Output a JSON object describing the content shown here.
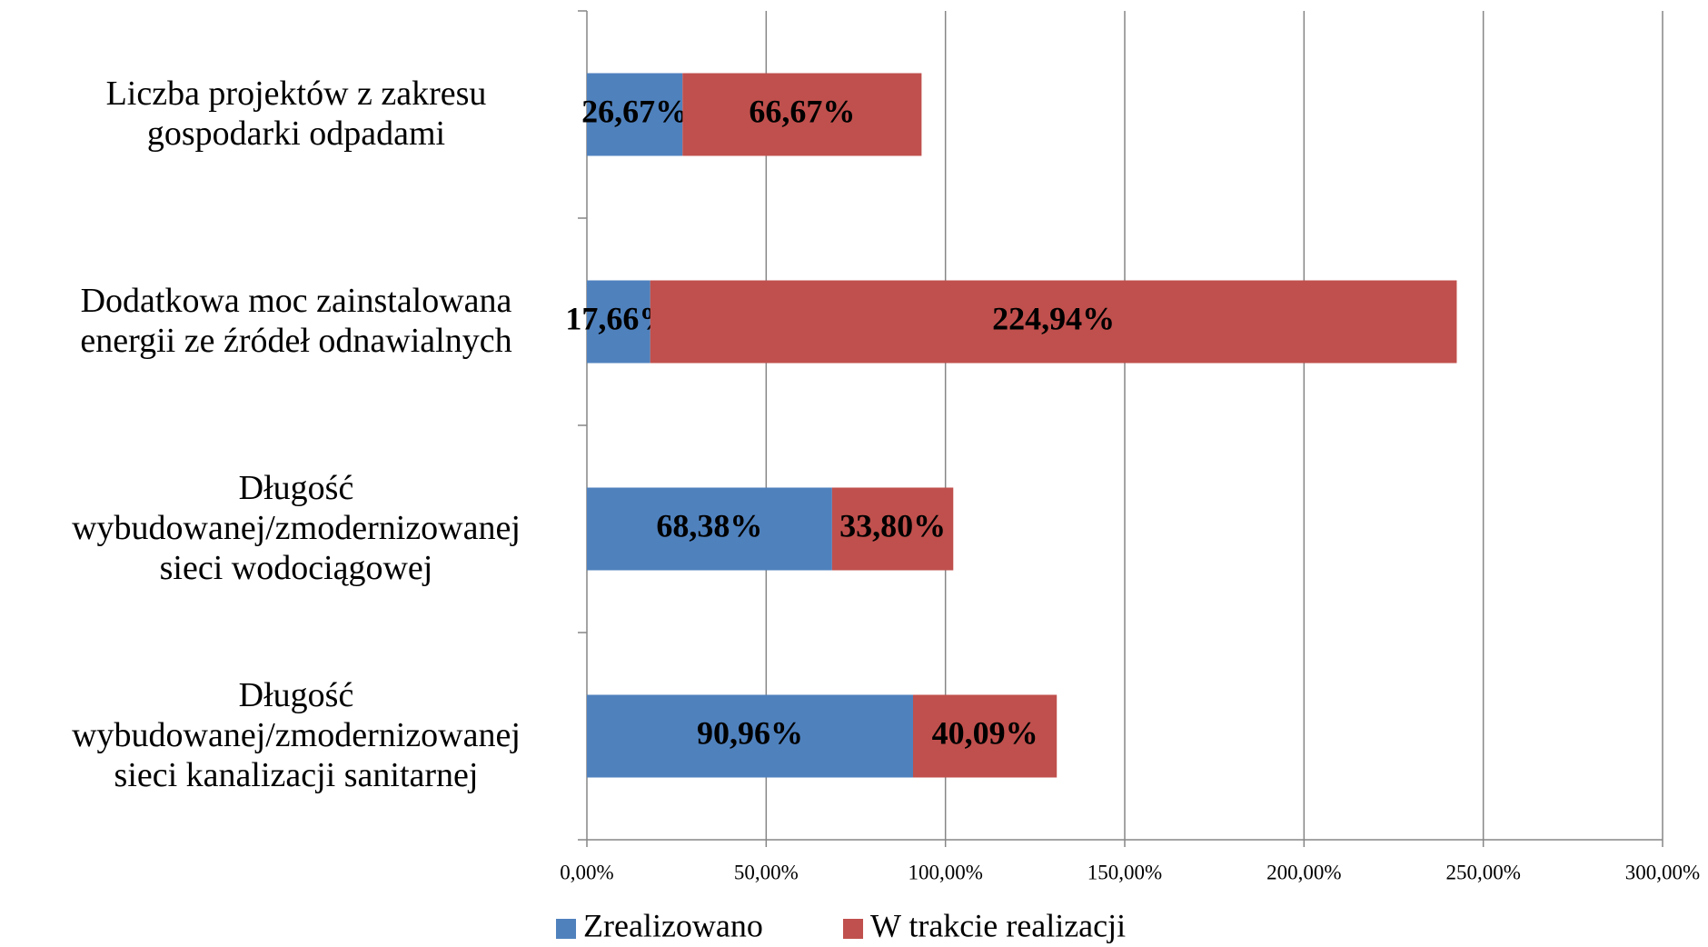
{
  "chart_data": {
    "type": "stacked-barh",
    "categories": [
      "Liczba projektów z zakresu gospodarki odpadami",
      "Dodatkowa moc zainstalowana energii ze źródeł odnawialnych",
      "Długość wybudowanej/zmodernizowanej sieci wodociągowej",
      "Długość wybudowanej/zmodernizowanej sieci kanalizacji sanitarnej"
    ],
    "series": [
      {
        "name": "Zrealizowano",
        "color": "#4f81bd",
        "values": [
          26.67,
          17.66,
          68.38,
          90.96
        ],
        "value_labels": [
          "26,67%",
          "17,66%",
          "68,38%",
          "90,96%"
        ]
      },
      {
        "name": "W trakcie realizacji",
        "color": "#c0504d",
        "values": [
          66.67,
          224.94,
          33.8,
          40.09
        ],
        "value_labels": [
          "66,67%",
          "224,94%",
          "33,80%",
          "40,09%"
        ]
      }
    ],
    "xlim": [
      0,
      300
    ],
    "xticks": [
      {
        "value": 0,
        "label": "0,00%"
      },
      {
        "value": 50,
        "label": "50,00%"
      },
      {
        "value": 100,
        "label": "100,00%"
      },
      {
        "value": 150,
        "label": "150,00%"
      },
      {
        "value": 200,
        "label": "200,00%"
      },
      {
        "value": 250,
        "label": "250,00%"
      },
      {
        "value": 300,
        "label": "300,00%"
      }
    ],
    "grid": true,
    "legend": "bottom"
  }
}
